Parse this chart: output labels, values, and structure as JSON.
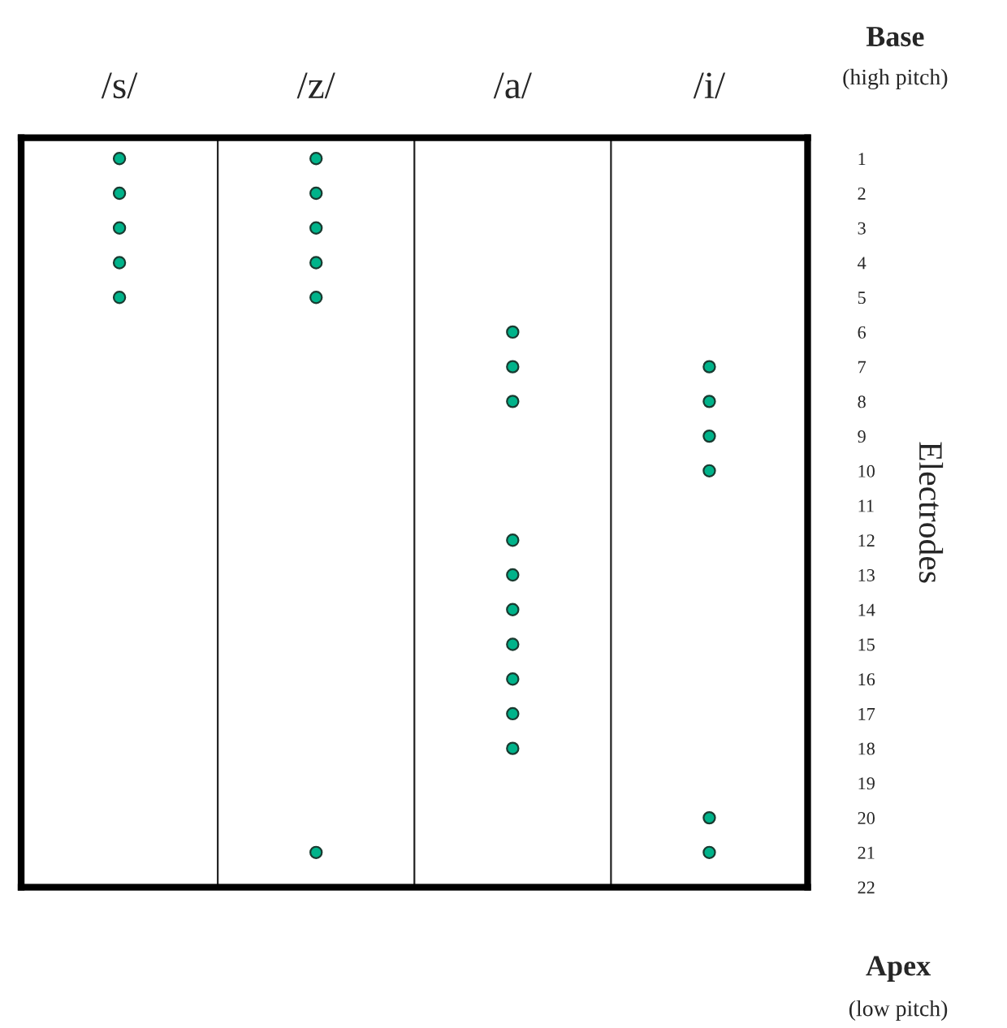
{
  "chart_data": {
    "type": "scatter",
    "categories": [
      "/s/",
      "/z/",
      "/a/",
      "/i/"
    ],
    "series": [
      {
        "color": "#00b38a",
        "x": [
          "/s/",
          "/s/",
          "/s/",
          "/s/",
          "/s/",
          "/z/",
          "/z/",
          "/z/",
          "/z/",
          "/z/",
          "/z/",
          "/a/",
          "/a/",
          "/a/",
          "/a/",
          "/a/",
          "/a/",
          "/a/",
          "/a/",
          "/a/",
          "/a/",
          "/i/",
          "/i/",
          "/i/",
          "/i/",
          "/i/",
          "/i/"
        ],
        "values": [
          1,
          2,
          3,
          4,
          5,
          1,
          2,
          3,
          4,
          5,
          21,
          6,
          7,
          8,
          12,
          13,
          14,
          15,
          16,
          17,
          18,
          7,
          8,
          9,
          10,
          20,
          21
        ]
      }
    ],
    "ylabel": "Electrodes",
    "ylim": [
      22,
      0.4
    ],
    "yticks": [
      1,
      2,
      3,
      4,
      5,
      6,
      7,
      8,
      9,
      10,
      11,
      12,
      13,
      14,
      15,
      16,
      17,
      18,
      19,
      20,
      21,
      22
    ],
    "marker": "circle",
    "grid": "x",
    "annotations": [
      "Base",
      "(high pitch)",
      "Apex",
      "(low pitch)"
    ]
  }
}
